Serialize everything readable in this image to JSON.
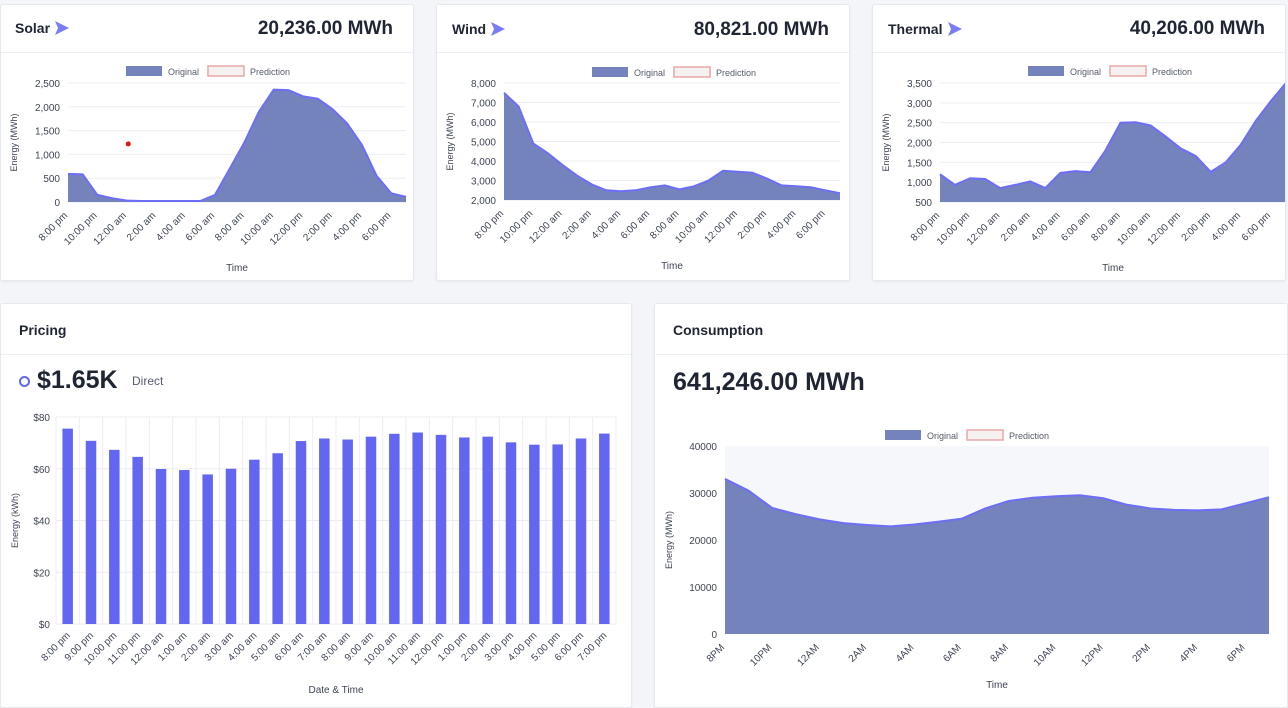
{
  "colors": {
    "area_fill": "#7583bd",
    "area_line": "#6d6ef5",
    "bar_fill": "#6366f1",
    "legend_original": "#7583bd",
    "legend_prediction_border": "#e8a7a7",
    "legend_prediction_fill": "#f5f1f1",
    "grid": "#ebedf2",
    "outlier_dot": "#e01414"
  },
  "cards": {
    "solar": {
      "title": "Solar",
      "total": "20,236.00 MWh",
      "icon": "arrow-right-icon"
    },
    "wind": {
      "title": "Wind",
      "total": "80,821.00 MWh",
      "icon": "arrow-right-icon"
    },
    "thermal": {
      "title": "Thermal",
      "total": "40,206.00 MWh",
      "icon": "arrow-right-icon"
    },
    "pricing": {
      "title": "Pricing",
      "value": "$1.65K",
      "sub_label": "Direct",
      "icon": "ring-icon"
    },
    "consumption": {
      "title": "Consumption",
      "value": "641,246.00 MWh"
    }
  },
  "chart_data": [
    {
      "id": "solar",
      "type": "area",
      "legend": [
        "Original",
        "Prediction"
      ],
      "legend_position": "top-center",
      "xlabel": "Time",
      "ylabel": "Energy (MWh)",
      "ylim": [
        0,
        2500
      ],
      "yticks": [
        0,
        500,
        1000,
        1500,
        2000,
        2500
      ],
      "ytick_labels": [
        "0",
        "500",
        "1,000",
        "1,500",
        "2,000",
        "2,500"
      ],
      "grid": true,
      "xtick_labels": [
        "8:00 pm",
        "10:00 pm",
        "12:00 am",
        "2:00 am",
        "4:00 am",
        "6:00 am",
        "8:00 am",
        "10:00 am",
        "12:00 pm",
        "2:00 pm",
        "4:00 pm",
        "6:00 pm"
      ],
      "series": [
        {
          "name": "Original",
          "values": [
            590,
            580,
            150,
            80,
            30,
            20,
            20,
            20,
            20,
            20,
            150,
            700,
            1250,
            1900,
            2360,
            2350,
            2220,
            2170,
            1950,
            1650,
            1200,
            550,
            180,
            110
          ]
        }
      ],
      "points": [
        {
          "x": 4.1,
          "y": 1220
        }
      ]
    },
    {
      "id": "wind",
      "type": "area",
      "legend": [
        "Original",
        "Prediction"
      ],
      "legend_position": "top-center",
      "xlabel": "Time",
      "ylabel": "Energy (MWh)",
      "ylim": [
        2000,
        8000
      ],
      "yticks": [
        2000,
        3000,
        4000,
        5000,
        6000,
        7000,
        8000
      ],
      "ytick_labels": [
        "2,000",
        "3,000",
        "4,000",
        "5,000",
        "6,000",
        "7,000",
        "8,000"
      ],
      "grid": true,
      "xtick_labels": [
        "8:00 pm",
        "10:00 pm",
        "12:00 am",
        "2:00 am",
        "4:00 am",
        "6:00 am",
        "8:00 am",
        "10:00 am",
        "12:00 pm",
        "2:00 pm",
        "4:00 pm",
        "6:00 pm"
      ],
      "series": [
        {
          "name": "Original",
          "values": [
            7500,
            6800,
            4900,
            4400,
            3800,
            3250,
            2800,
            2500,
            2450,
            2500,
            2650,
            2750,
            2550,
            2700,
            3000,
            3500,
            3450,
            3400,
            3100,
            2750,
            2700,
            2650,
            2500,
            2350
          ]
        }
      ]
    },
    {
      "id": "thermal",
      "type": "area",
      "legend": [
        "Original",
        "Prediction"
      ],
      "legend_position": "top-center",
      "xlabel": "Time",
      "ylabel": "Energy (MWh)",
      "ylim": [
        500,
        3500
      ],
      "yticks": [
        500,
        1000,
        1500,
        2000,
        2500,
        3000,
        3500
      ],
      "ytick_labels": [
        "500",
        "1,000",
        "1,500",
        "2,000",
        "2,500",
        "3,000",
        "3,500"
      ],
      "grid": true,
      "xtick_labels": [
        "8:00 pm",
        "10:00 pm",
        "12:00 am",
        "2:00 am",
        "4:00 am",
        "6:00 am",
        "8:00 am",
        "10:00 am",
        "12:00 pm",
        "2:00 pm",
        "4:00 pm",
        "6:00 pm"
      ],
      "series": [
        {
          "name": "Original",
          "values": [
            1200,
            930,
            1100,
            1080,
            850,
            930,
            1020,
            850,
            1230,
            1280,
            1250,
            1800,
            2500,
            2510,
            2430,
            2150,
            1850,
            1660,
            1260,
            1500,
            1950,
            2550,
            3050,
            3500
          ]
        }
      ]
    },
    {
      "id": "pricing",
      "type": "bar",
      "xlabel": "Date & Time",
      "ylabel": "Energy (kWh)",
      "ylim": [
        0,
        80
      ],
      "yticks": [
        0,
        20,
        40,
        60,
        80
      ],
      "ytick_labels": [
        "$0",
        "$20",
        "$40",
        "$60",
        "$80"
      ],
      "grid": true,
      "categories": [
        "8:00 pm",
        "9:00 pm",
        "10:00 pm",
        "11:00 pm",
        "12:00 am",
        "1:00 am",
        "2:00 am",
        "3:00 am",
        "4:00 am",
        "5:00 am",
        "6:00 am",
        "7:00 am",
        "8:00 am",
        "9:00 am",
        "10:00 am",
        "11:00 am",
        "12:00 pm",
        "1:00 pm",
        "2:00 pm",
        "3:00 pm",
        "4:00 pm",
        "5:00 pm",
        "6:00 pm",
        "7:00 pm"
      ],
      "values": [
        75.5,
        70.8,
        67.3,
        64.6,
        59.9,
        59.5,
        57.8,
        60.0,
        63.5,
        66.0,
        70.7,
        71.7,
        71.3,
        72.4,
        73.5,
        74.0,
        73.1,
        72.1,
        72.4,
        70.2,
        69.3,
        69.4,
        71.7,
        73.6
      ]
    },
    {
      "id": "consumption",
      "type": "area",
      "legend": [
        "Original",
        "Prediction"
      ],
      "legend_position": "top-center",
      "xlabel": "Time",
      "ylabel": "Energy (MWh)",
      "ylim": [
        0,
        40000
      ],
      "yticks": [
        0,
        10000,
        20000,
        30000,
        40000
      ],
      "ytick_labels": [
        "0",
        "10000",
        "20000",
        "30000",
        "40000"
      ],
      "grid": false,
      "xtick_labels": [
        "8PM",
        "10PM",
        "12AM",
        "2AM",
        "4AM",
        "6AM",
        "8AM",
        "10AM",
        "12PM",
        "2PM",
        "4PM",
        "6PM"
      ],
      "series": [
        {
          "name": "Original",
          "values": [
            33000,
            30500,
            26800,
            25500,
            24400,
            23600,
            23200,
            22900,
            23300,
            23900,
            24500,
            26700,
            28300,
            29000,
            29300,
            29500,
            28900,
            27500,
            26700,
            26400,
            26300,
            26500,
            27800,
            29100
          ]
        }
      ]
    }
  ]
}
